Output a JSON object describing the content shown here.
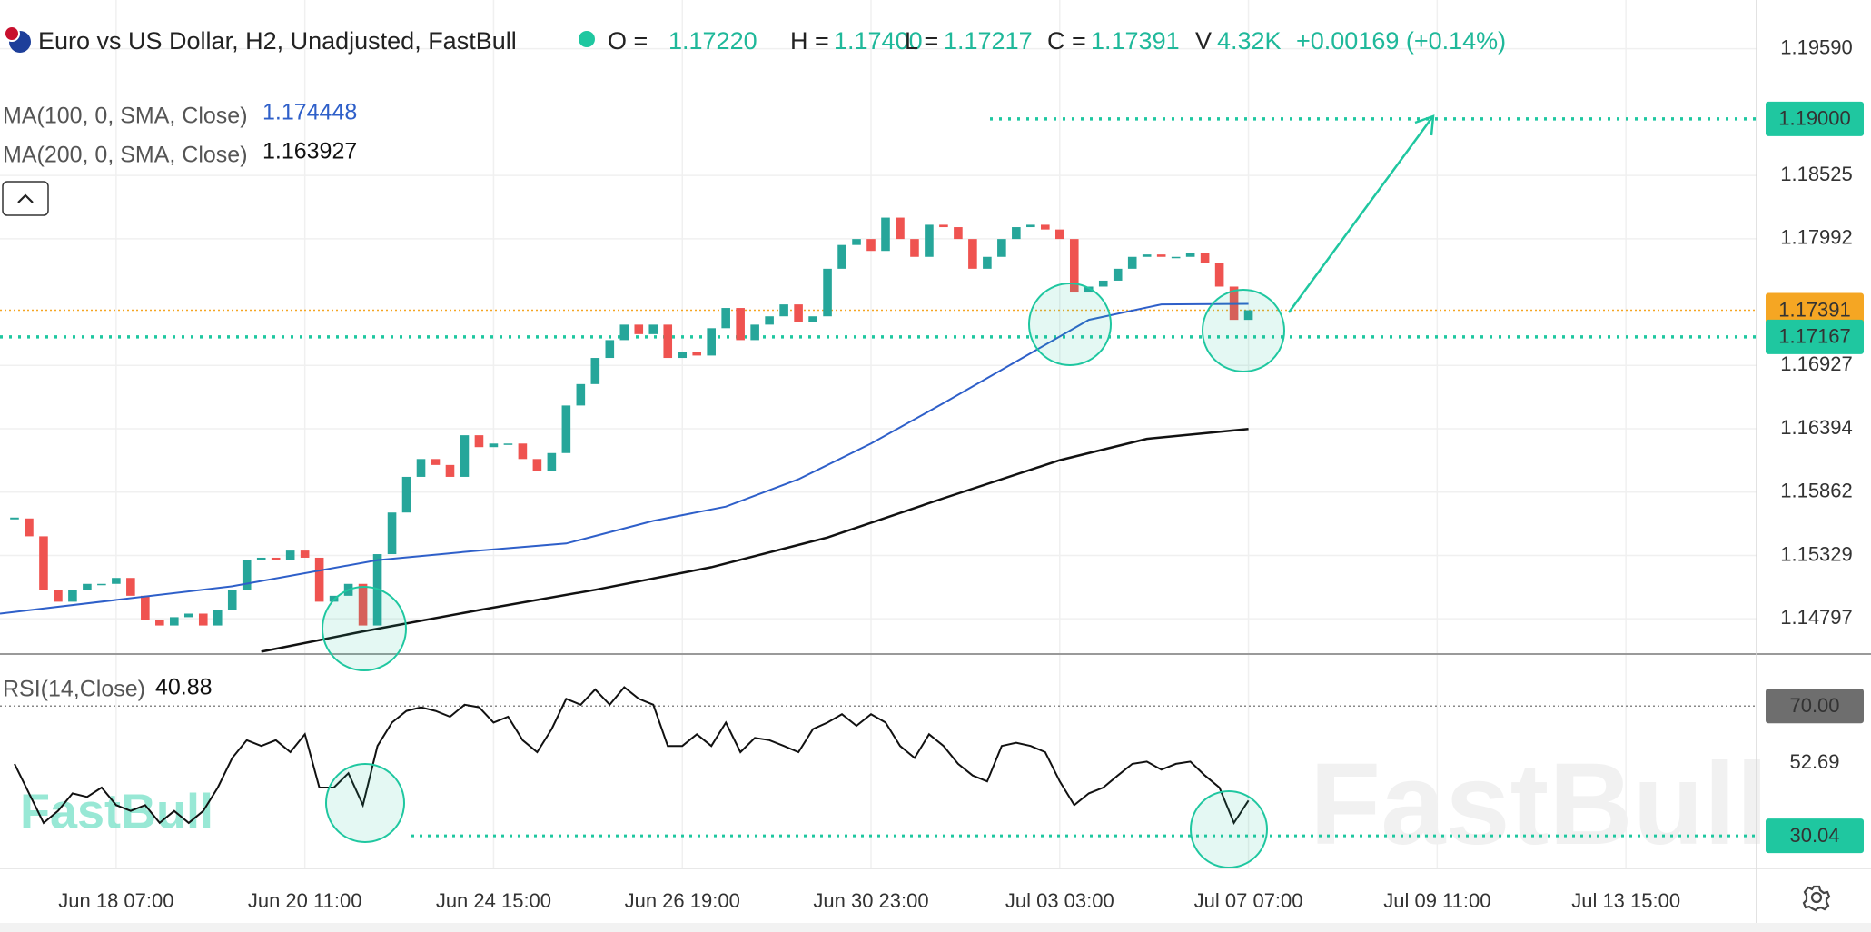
{
  "chart_data": {
    "type": "candlestick",
    "title": "Euro vs US Dollar, H2, Unadjusted, FastBull",
    "ohlc": [
      {
        "label": "O =",
        "value": "1.17220"
      },
      {
        "label": "H =",
        "value": "1.17400"
      },
      {
        "label": "L =",
        "value": "1.17217"
      },
      {
        "label": "C =",
        "value": "1.17391"
      }
    ],
    "volume": {
      "label": "V",
      "value": "4.32K"
    },
    "change": "+0.00169 (+0.14%)",
    "up_color": "#26a69a",
    "down_color": "#ef5350",
    "values": [
      1.1564,
      1.1549,
      1.1504,
      1.1494,
      1.1504,
      1.1509,
      1.1509,
      1.1514,
      1.1499,
      1.1479,
      1.1474,
      1.1481,
      1.1484,
      1.1474,
      1.1487,
      1.1504,
      1.1529,
      1.1531,
      1.1529,
      1.1537,
      1.1531,
      1.1494,
      1.1499,
      1.1509,
      1.1474,
      1.1534,
      1.1569,
      1.1599,
      1.1614,
      1.1609,
      1.1599,
      1.1634,
      1.1624,
      1.1627,
      1.1627,
      1.1614,
      1.1604,
      1.1619,
      1.1659,
      1.1677,
      1.1699,
      1.1714,
      1.1727,
      1.1719,
      1.1727,
      1.1699,
      1.1704,
      1.1701,
      1.1724,
      1.1741,
      1.1714,
      1.1727,
      1.1734,
      1.1744,
      1.1729,
      1.1734,
      1.1774,
      1.1794,
      1.1799,
      1.1789,
      1.1817,
      1.1799,
      1.1784,
      1.1811,
      1.1809,
      1.1799,
      1.1774,
      1.1784,
      1.1799,
      1.1809,
      1.1811,
      1.1807,
      1.1799,
      1.1754,
      1.1759,
      1.1764,
      1.1774,
      1.1784,
      1.1786,
      1.1784,
      1.1784,
      1.1787,
      1.1779,
      1.1759,
      1.1731,
      1.17391
    ],
    "series": [
      {
        "name": "MA(100, 0, SMA, Close)",
        "color": "#2e5fc9",
        "x": [
          -1,
          15,
          25,
          32,
          38,
          44,
          49,
          54,
          59,
          64,
          69,
          74,
          79,
          85
        ],
        "values": [
          1.1484,
          1.1507,
          1.1529,
          1.1537,
          1.1543,
          1.1562,
          1.1574,
          1.1597,
          1.1627,
          1.1661,
          1.1696,
          1.1731,
          1.1744,
          1.174448
        ]
      },
      {
        "name": "MA(200, 0, SMA, Close)",
        "color": "#111111",
        "x": [
          17,
          24,
          32,
          40,
          48,
          56,
          64,
          72,
          78,
          85
        ],
        "values": [
          1.1452,
          1.1469,
          1.1487,
          1.1504,
          1.1523,
          1.1548,
          1.1581,
          1.1613,
          1.1631,
          1.163927
        ]
      }
    ],
    "xlim": [
      -1,
      120
    ],
    "xticks": [
      {
        "value": 7,
        "label": "Jun 18 07:00"
      },
      {
        "value": 20,
        "label": "Jun 20 11:00"
      },
      {
        "value": 33,
        "label": "Jun 24 15:00"
      },
      {
        "value": 46,
        "label": "Jun 26 19:00"
      },
      {
        "value": 59,
        "label": "Jun 30 23:00"
      },
      {
        "value": 72,
        "label": "Jul 03 03:00"
      },
      {
        "value": 85,
        "label": "Jul 07 07:00"
      },
      {
        "value": 98,
        "label": "Jul 09 11:00"
      },
      {
        "value": 111,
        "label": "Jul 13 15:00"
      }
    ],
    "ylim": [
      1.145,
      1.2
    ],
    "yticks": [
      {
        "value": 1.1959,
        "label": "1.19590"
      },
      1.18525,
      1.17992,
      1.16927,
      1.16394,
      1.15862,
      1.15329,
      1.14797
    ],
    "grid": true,
    "levels": [
      {
        "value": 1.19,
        "label": "1.19000",
        "color": "#1fc7a0"
      },
      {
        "value": 1.17391,
        "label": "1.17391",
        "color": "#f5a623"
      },
      {
        "value": 1.17167,
        "label": "1.17167",
        "color": "#1fc7a0"
      }
    ],
    "rsi": {
      "name": "RSI(14,Close)",
      "color": "#111111",
      "values": [
        52.2,
        43.1,
        34.0,
        37.7,
        43.1,
        42.0,
        44.9,
        39.5,
        37.7,
        39.5,
        34.0,
        37.7,
        34.0,
        37.7,
        44.9,
        54.0,
        59.5,
        57.7,
        59.5,
        55.8,
        61.3,
        44.9,
        44.9,
        49.3,
        39.5,
        57.7,
        64.9,
        68.5,
        69.6,
        68.5,
        66.7,
        70.4,
        69.6,
        64.9,
        66.7,
        59.5,
        55.8,
        62.9,
        72.2,
        70.4,
        75.1,
        70.4,
        75.8,
        72.2,
        70.4,
        57.7,
        57.7,
        61.3,
        57.7,
        64.9,
        55.8,
        60.2,
        59.5,
        57.7,
        55.8,
        62.9,
        64.9,
        67.5,
        63.9,
        67.5,
        64.9,
        57.7,
        54.0,
        61.3,
        57.7,
        52.2,
        48.6,
        46.8,
        57.7,
        58.7,
        57.7,
        55.8,
        46.8,
        39.5,
        43.1,
        44.9,
        48.6,
        52.2,
        52.9,
        50.4,
        52.2,
        52.9,
        48.6,
        44.9,
        34.0,
        40.88
      ],
      "ylim": [
        20,
        86
      ],
      "yticks": [
        {
          "value": 70,
          "label": "70.00"
        },
        52.69,
        {
          "value": 30.04,
          "label": "30.04"
        }
      ]
    },
    "watermark": "FastBull"
  }
}
